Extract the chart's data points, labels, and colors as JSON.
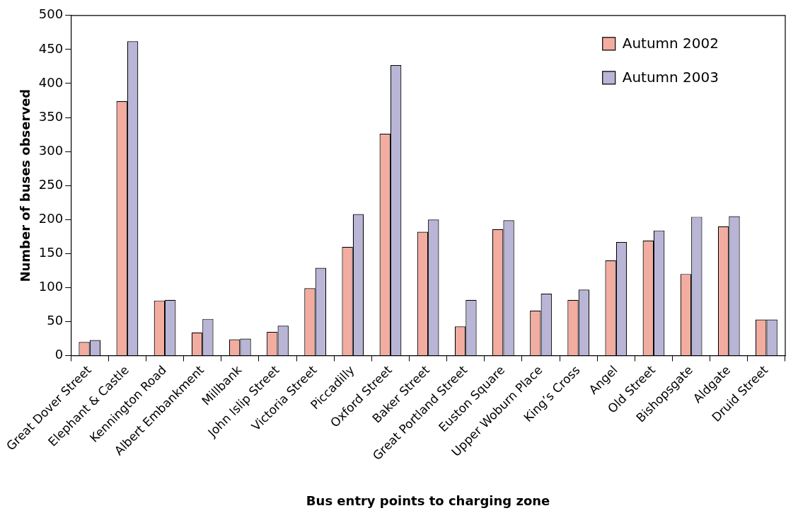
{
  "chart_data": {
    "type": "bar",
    "xlabel": "Bus entry points to charging zone",
    "ylabel": "Number of buses observed",
    "categories": [
      "Great Dover Street",
      "Elephant & Castle",
      "Kennington Road",
      "Albert Embankment",
      "Millbank",
      "John Islip Street",
      "Victoria Street",
      "Piccadilly",
      "Oxford Street",
      "Baker Street",
      "Great Portland Street",
      "Euston Square",
      "Upper Woburn Place",
      "King’s Cross",
      "Angel",
      "Old Street",
      "Bishopsgate",
      "Aldgate",
      "Druid Street"
    ],
    "series": [
      {
        "name": "Autumn 2002",
        "color": "#f2aca0",
        "values": [
          20,
          374,
          81,
          34,
          24,
          35,
          99,
          160,
          326,
          182,
          43,
          186,
          66,
          82,
          140,
          169,
          120,
          190,
          53
        ]
      },
      {
        "name": "Autumn 2003",
        "color": "#b8b5d6",
        "values": [
          23,
          462,
          82,
          54,
          25,
          44,
          129,
          208,
          427,
          200,
          82,
          199,
          91,
          97,
          167,
          184,
          204,
          205,
          53
        ]
      }
    ],
    "ylim": [
      0,
      500
    ],
    "yticks": [
      0,
      50,
      100,
      150,
      200,
      250,
      300,
      350,
      400,
      450,
      500
    ],
    "grid": false,
    "legend": "top right"
  }
}
